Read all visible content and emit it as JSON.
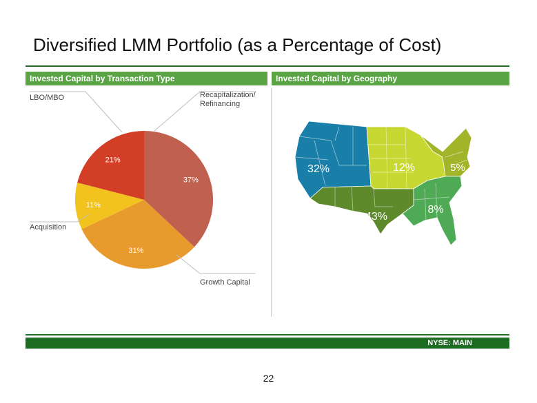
{
  "title": "Diversified LMM Portfolio (as a Percentage of Cost)",
  "footer": {
    "ticker": "NYSE:  MAIN"
  },
  "page_number": "22",
  "chart_data": [
    {
      "type": "pie",
      "title": "Invested Capital by Transaction Type",
      "slices": [
        {
          "label": "Recapitalization/\nRefinancing",
          "value": 37,
          "value_label": "37%",
          "color": "#c0604f"
        },
        {
          "label": "Growth Capital",
          "value": 31,
          "value_label": "31%",
          "color": "#e99a2c"
        },
        {
          "label": "Acquisition",
          "value": 11,
          "value_label": "11%",
          "color": "#f2c31f"
        },
        {
          "label": "LBO/MBO",
          "value": 21,
          "value_label": "21%",
          "color": "#d23f26"
        }
      ]
    },
    {
      "type": "map",
      "title": "Invested Capital by Geography",
      "regions": [
        {
          "value": 32,
          "value_label": "32%",
          "color": "#1a7fa8"
        },
        {
          "value": 12,
          "value_label": "12%",
          "color": "#c8d832"
        },
        {
          "value": 5,
          "value_label": "5%",
          "color": "#a2b52a"
        },
        {
          "value": 43,
          "value_label": "43%",
          "color": "#5e8a2b"
        },
        {
          "value": 8,
          "value_label": "8%",
          "color": "#4faa55"
        }
      ]
    }
  ]
}
